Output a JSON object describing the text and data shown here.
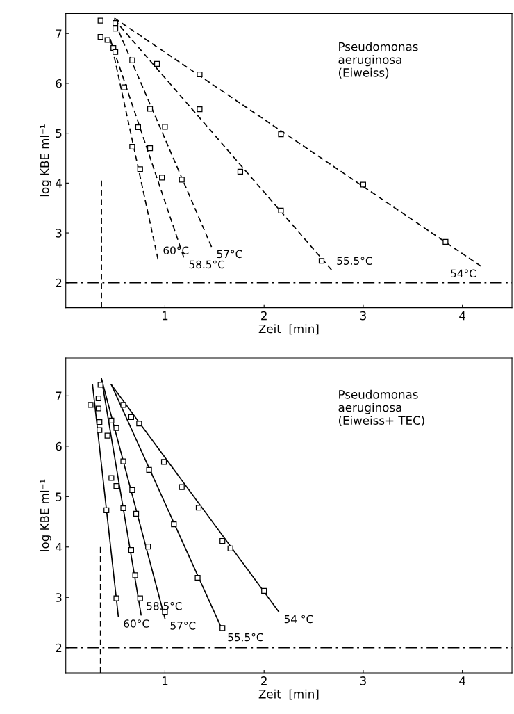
{
  "chart_data": [
    {
      "type": "scatter",
      "xlabel": "Zeit  [min]",
      "ylabel": "log KBE ml⁻¹",
      "xlim": [
        0,
        4.5
      ],
      "ylim": [
        1.5,
        7.4
      ],
      "xticks": [
        1,
        2,
        3,
        4
      ],
      "yticks": [
        2,
        3,
        4,
        5,
        6,
        7
      ],
      "marker": "square",
      "annotations": [
        "Pseudomonas\naeruginosa\n(Eiweiss)"
      ],
      "ref_lines": [
        {
          "axis": "y",
          "value": 2,
          "line_style": "dashdot",
          "color": "#000000"
        }
      ],
      "series": [
        {
          "type": "scatter",
          "color": "#000000",
          "x": [
            0.35,
            0.35,
            0.42
          ],
          "values": [
            7.26,
            6.93,
            6.87
          ]
        },
        {
          "type": "scatter",
          "color": "#000000",
          "x": [
            0.5,
            1.35,
            2.17,
            3.0,
            3.83
          ],
          "values": [
            7.21,
            6.18,
            4.98,
            3.97,
            2.82
          ]
        },
        {
          "type": "line",
          "name": "54°C",
          "color": "#000000",
          "line_style": "dashed",
          "marker": "none",
          "x": [
            0.49,
            4.19
          ],
          "values": [
            7.31,
            2.33
          ]
        },
        {
          "type": "scatter",
          "color": "#000000",
          "x": [
            0.5,
            0.92,
            1.35,
            1.76,
            2.17,
            2.58
          ],
          "values": [
            7.1,
            6.39,
            5.48,
            4.23,
            3.45,
            2.44
          ]
        },
        {
          "type": "line",
          "name": "55.5°C",
          "color": "#000000",
          "line_style": "dashed",
          "marker": "none",
          "x": [
            0.49,
            2.68
          ],
          "values": [
            7.28,
            2.26
          ]
        },
        {
          "type": "scatter",
          "color": "#000000",
          "x": [
            0.67,
            0.85,
            1.0,
            1.17
          ],
          "values": [
            6.46,
            5.49,
            5.13,
            4.07
          ]
        },
        {
          "type": "line",
          "name": "57°C",
          "color": "#000000",
          "line_style": "dashed",
          "marker": "none",
          "x": [
            0.5,
            1.47
          ],
          "values": [
            7.2,
            2.72
          ]
        },
        {
          "type": "scatter",
          "color": "#000000",
          "x": [
            0.48,
            0.73,
            0.85,
            0.97
          ],
          "values": [
            6.71,
            5.12,
            4.7,
            4.11
          ]
        },
        {
          "type": "line",
          "name": "58.5°C",
          "color": "#000000",
          "line_style": "dashed",
          "marker": "none",
          "x": [
            0.45,
            1.19
          ],
          "values": [
            6.87,
            2.51
          ]
        },
        {
          "type": "scatter",
          "color": "#000000",
          "x": [
            0.5,
            0.59,
            0.67,
            0.75
          ],
          "values": [
            6.63,
            5.92,
            4.73,
            4.28
          ]
        },
        {
          "type": "line",
          "name": "60°C",
          "color": "#000000",
          "line_style": "dashed",
          "marker": "none",
          "x": [
            0.45,
            0.93
          ],
          "values": [
            6.89,
            2.47
          ]
        },
        {
          "type": "line",
          "color": "#000000",
          "line_style": "dashed",
          "marker": "none",
          "x": [
            0.36,
            0.36
          ],
          "values": [
            1.5,
            4.05
          ]
        }
      ]
    },
    {
      "type": "scatter",
      "xlabel": "Zeit  [min]",
      "ylabel": "log KBE ml⁻¹",
      "xlim": [
        0,
        4.5
      ],
      "ylim": [
        1.5,
        7.75
      ],
      "xticks": [
        1,
        2,
        3,
        4
      ],
      "yticks": [
        2,
        3,
        4,
        5,
        6,
        7
      ],
      "marker": "square",
      "annotations": [
        "Pseudomonas\naeruginosa\n(Eiweiss+ TEC)"
      ],
      "ref_lines": [
        {
          "axis": "y",
          "value": 2,
          "line_style": "dashdot",
          "color": "#000000"
        }
      ],
      "series": [
        {
          "type": "scatter",
          "color": "#000000",
          "x": [
            0.35,
            0.25,
            0.33
          ],
          "values": [
            7.22,
            6.82,
            6.95
          ]
        },
        {
          "type": "scatter",
          "color": "#000000",
          "x": [
            0.74,
            0.99,
            1.17,
            1.34,
            1.58,
            1.66,
            2.0
          ],
          "values": [
            6.45,
            5.69,
            5.19,
            4.78,
            4.12,
            3.97,
            3.13
          ]
        },
        {
          "type": "line",
          "name": "54 °C",
          "color": "#000000",
          "line_style": "solid",
          "marker": "none",
          "x": [
            0.46,
            2.15
          ],
          "values": [
            7.22,
            2.71
          ]
        },
        {
          "type": "scatter",
          "color": "#000000",
          "x": [
            0.58,
            0.66,
            0.84,
            1.09,
            1.33,
            1.58
          ],
          "values": [
            6.82,
            6.58,
            5.53,
            4.45,
            3.39,
            2.39
          ]
        },
        {
          "type": "line",
          "name": "55.5°C",
          "color": "#000000",
          "line_style": "solid",
          "marker": "none",
          "x": [
            0.46,
            1.58
          ],
          "values": [
            7.22,
            2.35
          ]
        },
        {
          "type": "scatter",
          "color": "#000000",
          "x": [
            0.46,
            0.51,
            0.58,
            0.67,
            0.71,
            0.83,
            1.0
          ],
          "values": [
            6.51,
            6.36,
            5.7,
            5.13,
            4.66,
            4.01,
            2.71
          ]
        },
        {
          "type": "line",
          "name": "57°C",
          "color": "#000000",
          "line_style": "solid",
          "marker": "none",
          "x": [
            0.36,
            1.0
          ],
          "values": [
            7.34,
            2.58
          ]
        },
        {
          "type": "scatter",
          "color": "#000000",
          "x": [
            0.42,
            0.46,
            0.51,
            0.58,
            0.66,
            0.7,
            0.75
          ],
          "values": [
            6.21,
            5.37,
            5.21,
            4.77,
            3.94,
            3.44,
            2.98
          ]
        },
        {
          "type": "line",
          "name": "58.5°C",
          "color": "#000000",
          "line_style": "solid",
          "marker": "none",
          "x": [
            0.36,
            0.76
          ],
          "values": [
            7.34,
            2.65
          ]
        },
        {
          "type": "scatter",
          "color": "#000000",
          "x": [
            0.33,
            0.34,
            0.34,
            0.41,
            0.51
          ],
          "values": [
            6.75,
            6.48,
            6.32,
            4.73,
            2.98
          ]
        },
        {
          "type": "line",
          "name": "60°C",
          "color": "#000000",
          "line_style": "solid",
          "marker": "none",
          "x": [
            0.27,
            0.53
          ],
          "values": [
            7.22,
            2.62
          ]
        },
        {
          "type": "line",
          "color": "#000000",
          "line_style": "dashed",
          "marker": "none",
          "x": [
            0.35,
            0.35
          ],
          "values": [
            1.5,
            4.0
          ]
        }
      ]
    }
  ]
}
